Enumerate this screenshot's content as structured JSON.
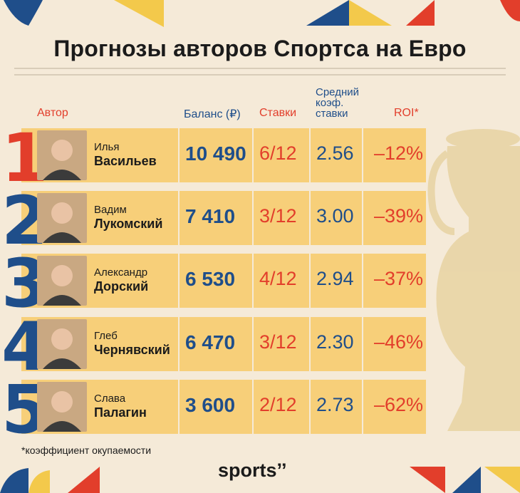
{
  "title": "Прогнозы авторов Спортса на Евро",
  "headers": {
    "author": "Автор",
    "balance": "Баланс (₽)",
    "bets": "Ставки",
    "avg_coef": [
      "Средний",
      "коэф.",
      "ставки"
    ],
    "roi": "ROI*"
  },
  "rows": [
    {
      "rank": "1",
      "first": "Илья",
      "last": "Васильев",
      "balance": "10 490",
      "bets": "6/12",
      "coef": "2.56",
      "roi": "–12%",
      "rank_color": "#e23e2b"
    },
    {
      "rank": "2",
      "first": "Вадим",
      "last": "Лукомский",
      "balance": "7 410",
      "bets": "3/12",
      "coef": "3.00",
      "roi": "–39%",
      "rank_color": "#1f4e8a"
    },
    {
      "rank": "3",
      "first": "Александр",
      "last": "Дорский",
      "balance": "6 530",
      "bets": "4/12",
      "coef": "2.94",
      "roi": "–37%",
      "rank_color": "#1f4e8a"
    },
    {
      "rank": "4",
      "first": "Глеб",
      "last": "Чернявский",
      "balance": "6 470",
      "bets": "3/12",
      "coef": "2.30",
      "roi": "–46%",
      "rank_color": "#1f4e8a"
    },
    {
      "rank": "5",
      "first": "Слава",
      "last": "Палагин",
      "balance": "3 600",
      "bets": "2/12",
      "coef": "2.73",
      "roi": "–62%",
      "rank_color": "#1f4e8a"
    }
  ],
  "footnote": "*коэффициент окупаемости",
  "brand": "sports’’",
  "colors": {
    "background": "#f5ead8",
    "cell": "#f7cf79",
    "red": "#e23e2b",
    "blue": "#1f4e8a",
    "yellow": "#f3c94b"
  }
}
